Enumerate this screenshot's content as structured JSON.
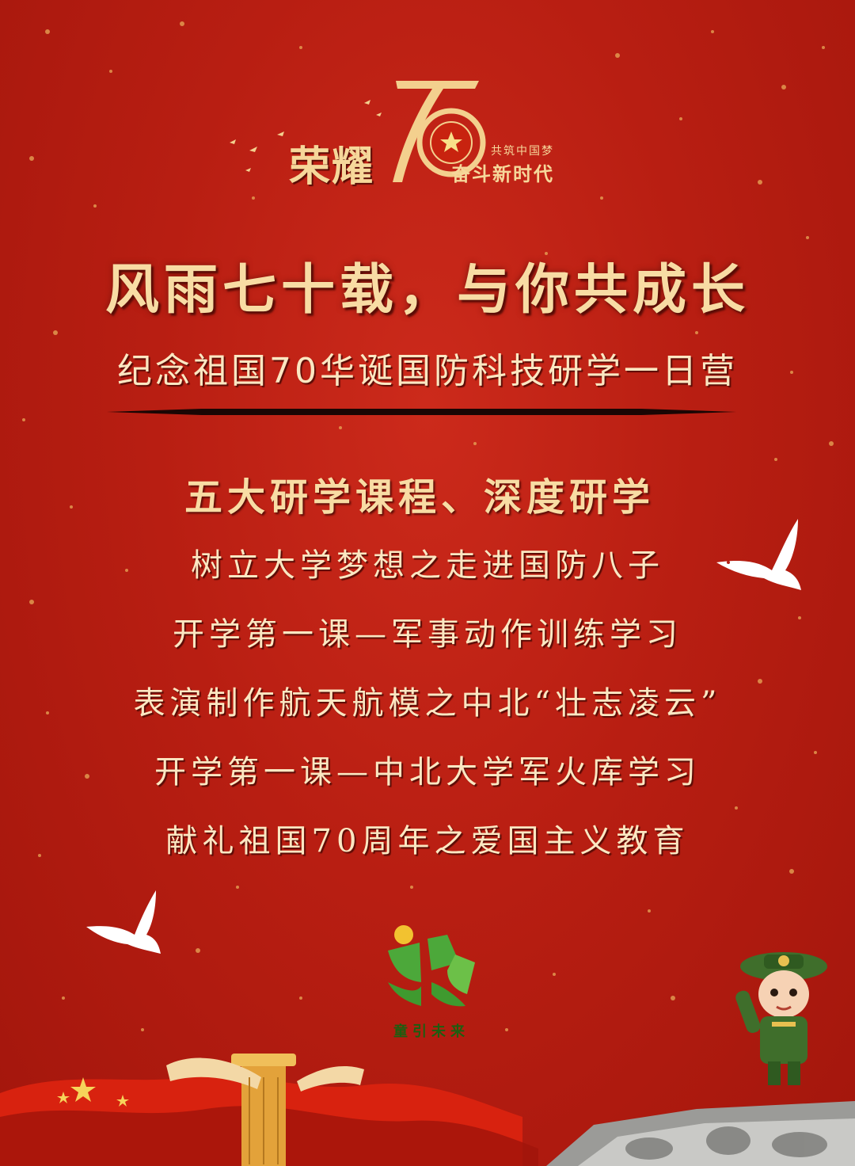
{
  "emblem": {
    "left_text": "荣耀",
    "number": "70",
    "right_small": "共筑中国梦",
    "right_main": "奋斗新时代"
  },
  "title": "风雨七十载，与你共成长",
  "subtitle": "纪念祖国70华诞国防科技研学一日营",
  "section_title": "五大研学课程、深度研学",
  "courses": [
    "树立大学梦想之走进国防八子",
    "开学第一课—军事动作训练学习",
    "表演制作航天航模之中北“壮志凌云”",
    "开学第一课—中北大学军火库学习",
    "献礼祖国70周年之爱国主义教育"
  ],
  "logo": {
    "text": "童引未来"
  },
  "colors": {
    "background": "#b51c12",
    "gold": "#f6d79a",
    "text": "#fbe7c2",
    "logo_green": "#4ca83a"
  }
}
